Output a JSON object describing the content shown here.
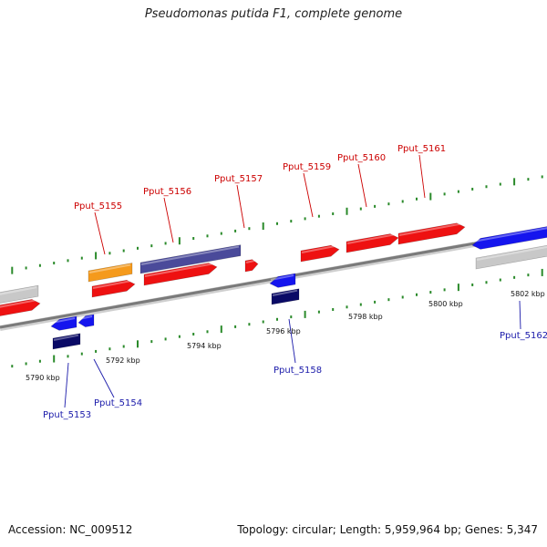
{
  "title": "Pseudomonas putida F1, complete genome",
  "footer": {
    "accession": "Accession: NC_009512",
    "topology": "Topology: circular; Length: 5,959,964 bp; Genes: 5,347"
  },
  "colors": {
    "backbone": "#8a8a8a",
    "tick": "#2a8a2a",
    "label_forward": "#cc0000",
    "label_reverse": "#1a1aaa",
    "gene_red": "#ee1111",
    "gene_orange": "#f59a1c",
    "gene_slate": "#4a4a9a",
    "gene_blue": "#1515ee",
    "gene_navy": "#0a0a66",
    "gene_gray": "#c8c8c8"
  },
  "scale": {
    "labels": [
      "5790 kbp",
      "5792 kbp",
      "5794 kbp",
      "5796 kbp",
      "5798 kbp",
      "5800 kbp",
      "5802 kbp"
    ]
  },
  "gene_labels": [
    {
      "id": "Pput_5155",
      "strand": "forward"
    },
    {
      "id": "Pput_5156",
      "strand": "forward"
    },
    {
      "id": "Pput_5157",
      "strand": "forward"
    },
    {
      "id": "Pput_5159",
      "strand": "forward"
    },
    {
      "id": "Pput_5160",
      "strand": "forward"
    },
    {
      "id": "Pput_5161",
      "strand": "forward"
    },
    {
      "id": "Pput_5153",
      "strand": "reverse"
    },
    {
      "id": "Pput_5154",
      "strand": "reverse"
    },
    {
      "id": "Pput_5158",
      "strand": "reverse"
    },
    {
      "id": "Pput_5162",
      "strand": "reverse"
    }
  ]
}
